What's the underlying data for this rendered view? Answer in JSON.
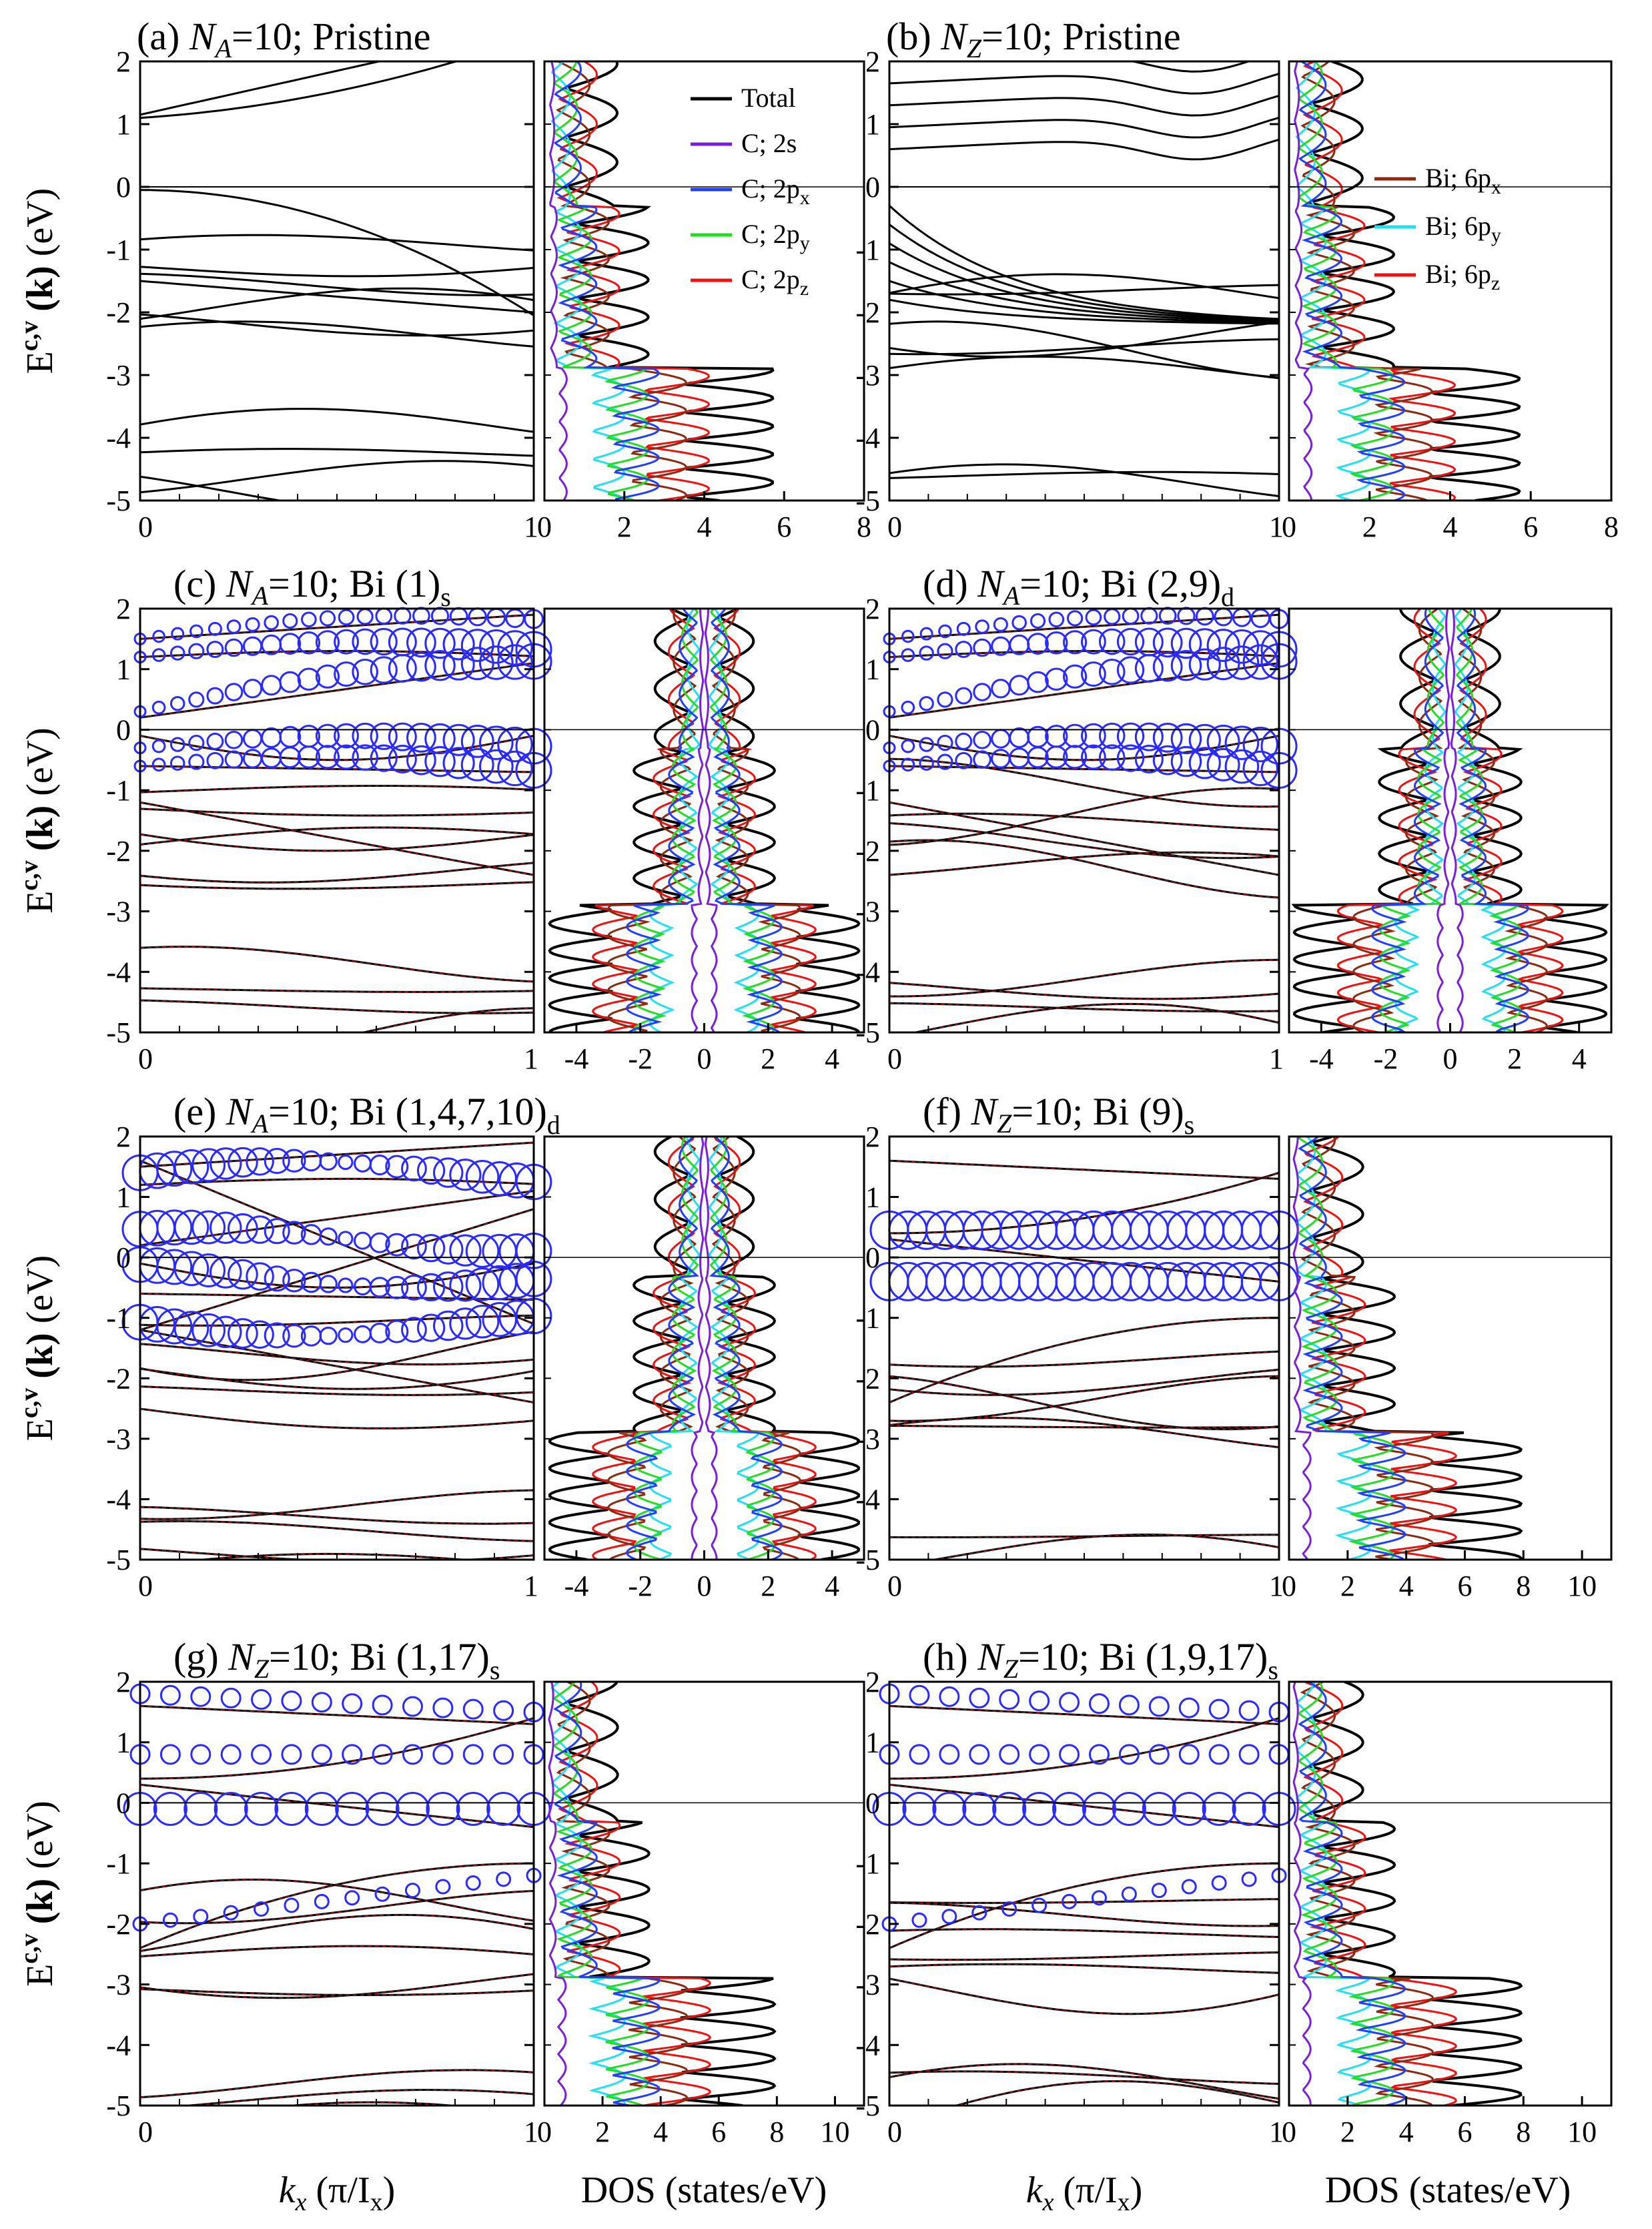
{
  "figure": {
    "ylabel_row": "E",
    "ylabel_sup": "c,v",
    "ylabel_k": "(k)",
    "ylabel_unit": "(eV)",
    "band_xlabel": "k",
    "band_xlabel_sub": "x",
    "band_xlabel_unit": "(π/I",
    "band_xlabel_unit_sub": "x",
    "band_xlabel_unit_end": ")",
    "dos_xlabel": "DOS (states/eV)"
  },
  "panels": [
    {
      "tag": "(a)",
      "N": "N",
      "Nsub": "A",
      "rest": "=10; Pristine",
      "sub": ""
    },
    {
      "tag": "(b)",
      "N": "N",
      "Nsub": "Z",
      "rest": "=10; Pristine",
      "sub": ""
    },
    {
      "tag": "(c)",
      "N": "N",
      "Nsub": "A",
      "rest": "=10; Bi (1)",
      "sub": "s"
    },
    {
      "tag": "(d)",
      "N": "N",
      "Nsub": "A",
      "rest": "=10; Bi (2,9)",
      "sub": "d"
    },
    {
      "tag": "(e)",
      "N": "N",
      "Nsub": "A",
      "rest": "=10; Bi (1,4,7,10)",
      "sub": "d"
    },
    {
      "tag": "(f)",
      "N": "N",
      "Nsub": "Z",
      "rest": "=10; Bi (9)",
      "sub": "s"
    },
    {
      "tag": "(g)",
      "N": "N",
      "Nsub": "Z",
      "rest": "=10; Bi (1,17)",
      "sub": "s"
    },
    {
      "tag": "(h)",
      "N": "N",
      "Nsub": "Z",
      "rest": "=10; Bi (1,9,17)",
      "sub": "s"
    }
  ],
  "legend_C": [
    {
      "label": "Total",
      "sub": "",
      "color": "#000000"
    },
    {
      "label": "C; 2s",
      "sub": "",
      "color": "#7a1fd6"
    },
    {
      "label": "C; 2p",
      "sub": "x",
      "color": "#1f3fff"
    },
    {
      "label": "C; 2p",
      "sub": "y",
      "color": "#22dd22"
    },
    {
      "label": "C; 2p",
      "sub": "z",
      "color": "#ee1111"
    }
  ],
  "legend_Bi": [
    {
      "label": "Bi; 6p",
      "sub": "x",
      "color": "#8b2a10"
    },
    {
      "label": "Bi; 6p",
      "sub": "y",
      "color": "#22e0f0"
    },
    {
      "label": "Bi; 6p",
      "sub": "z",
      "color": "#ee1111"
    }
  ],
  "chart_data": [
    {
      "type": "line",
      "panel": "(a) band",
      "x_ticks": [
        "0",
        "1"
      ],
      "y_ticks": [
        "2",
        "1",
        "0",
        "-1",
        "-2",
        "-3",
        "-4",
        "-5"
      ],
      "ylim": [
        -5,
        2
      ],
      "xlim": [
        0,
        1
      ],
      "series": [
        {
          "values": [
            [
              0,
              1.1
            ],
            [
              0.5,
              1.6
            ],
            [
              1,
              2.0
            ]
          ]
        },
        {
          "values": [
            [
              0,
              -0.05
            ],
            [
              1,
              -2.1
            ]
          ]
        }
      ]
    },
    {
      "type": "line",
      "panel": "(a) DOS",
      "x_ticks": [
        "0",
        "2",
        "4",
        "6",
        "8"
      ],
      "xlim": [
        0,
        8
      ],
      "ylim": [
        -5,
        2
      ]
    },
    {
      "type": "line",
      "panel": "(b) band",
      "x_ticks": [
        "0",
        "1"
      ],
      "y_ticks": [
        "2",
        "1",
        "0",
        "-1",
        "-2",
        "-3",
        "-4",
        "-5"
      ],
      "ylim": [
        -5,
        2
      ],
      "xlim": [
        0,
        1
      ]
    },
    {
      "type": "line",
      "panel": "(b) DOS",
      "x_ticks": [
        "0",
        "2",
        "4",
        "6",
        "8"
      ],
      "xlim": [
        0,
        8
      ],
      "ylim": [
        -5,
        2
      ]
    },
    {
      "type": "line",
      "panel": "(c) band",
      "x_ticks": [
        "0",
        "1"
      ],
      "y_ticks": [
        "2",
        "1",
        "0",
        "-1",
        "-2",
        "-3",
        "-4",
        "-5"
      ],
      "ylim": [
        -5,
        2
      ],
      "xlim": [
        0,
        1
      ]
    },
    {
      "type": "line",
      "panel": "(c) DOS",
      "x_ticks": [
        "-4",
        "-2",
        "0",
        "2",
        "4"
      ],
      "xlim": [
        -5,
        5
      ],
      "ylim": [
        -5,
        2
      ]
    },
    {
      "type": "line",
      "panel": "(d) band",
      "x_ticks": [
        "0",
        "1"
      ],
      "y_ticks": [
        "2",
        "1",
        "0",
        "-1",
        "-2",
        "-3",
        "-4",
        "-5"
      ],
      "ylim": [
        -5,
        2
      ],
      "xlim": [
        0,
        1
      ]
    },
    {
      "type": "line",
      "panel": "(d) DOS",
      "x_ticks": [
        "-4",
        "-2",
        "0",
        "2",
        "4"
      ],
      "xlim": [
        -5,
        5
      ],
      "ylim": [
        -5,
        2
      ]
    },
    {
      "type": "line",
      "panel": "(e) band",
      "x_ticks": [
        "0",
        "1"
      ],
      "y_ticks": [
        "2",
        "1",
        "0",
        "-1",
        "-2",
        "-3",
        "-4",
        "-5"
      ],
      "ylim": [
        -5,
        2
      ],
      "xlim": [
        0,
        1
      ]
    },
    {
      "type": "line",
      "panel": "(e) DOS",
      "x_ticks": [
        "-4",
        "-2",
        "0",
        "2",
        "4"
      ],
      "xlim": [
        -5,
        5
      ],
      "ylim": [
        -5,
        2
      ]
    },
    {
      "type": "line",
      "panel": "(f) band",
      "x_ticks": [
        "0",
        "1"
      ],
      "y_ticks": [
        "2",
        "1",
        "0",
        "-1",
        "-2",
        "-3",
        "-4",
        "-5"
      ],
      "ylim": [
        -5,
        2
      ],
      "xlim": [
        0,
        1
      ]
    },
    {
      "type": "line",
      "panel": "(f) DOS",
      "x_ticks": [
        "0",
        "2",
        "4",
        "6",
        "8",
        "10"
      ],
      "xlim": [
        0,
        11
      ],
      "ylim": [
        -5,
        2
      ]
    },
    {
      "type": "line",
      "panel": "(g) band",
      "x_ticks": [
        "0",
        "1"
      ],
      "y_ticks": [
        "2",
        "1",
        "0",
        "-1",
        "-2",
        "-3",
        "-4",
        "-5"
      ],
      "ylim": [
        -5,
        2
      ],
      "xlim": [
        0,
        1
      ]
    },
    {
      "type": "line",
      "panel": "(g) DOS",
      "x_ticks": [
        "0",
        "2",
        "4",
        "6",
        "8",
        "10"
      ],
      "xlim": [
        0,
        11
      ],
      "ylim": [
        -5,
        2
      ]
    },
    {
      "type": "line",
      "panel": "(h) band",
      "x_ticks": [
        "0",
        "1"
      ],
      "y_ticks": [
        "2",
        "1",
        "0",
        "-1",
        "-2",
        "-3",
        "-4",
        "-5"
      ],
      "ylim": [
        -5,
        2
      ],
      "xlim": [
        0,
        1
      ]
    },
    {
      "type": "line",
      "panel": "(h) DOS",
      "x_ticks": [
        "0",
        "2",
        "4",
        "6",
        "8",
        "10"
      ],
      "xlim": [
        0,
        11
      ],
      "ylim": [
        -5,
        2
      ]
    }
  ]
}
